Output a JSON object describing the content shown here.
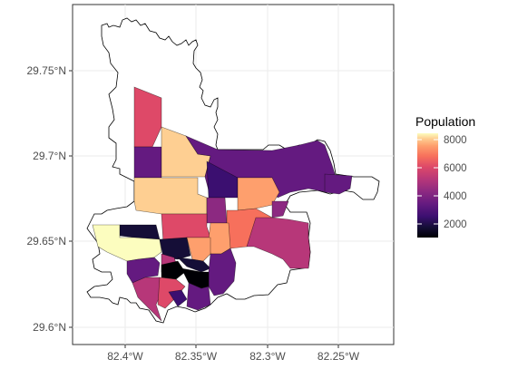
{
  "chart_data": {
    "type": "choropleth",
    "title": "",
    "xlabel": "",
    "ylabel": "",
    "x_ticks": [
      "82.4°W",
      "82.35°W",
      "82.3°W",
      "82.25°W"
    ],
    "y_ticks": [
      "29.75°N",
      "29.7°N",
      "29.65°N",
      "29.6°N"
    ],
    "xlim": [
      -82.435,
      -82.215
    ],
    "ylim": [
      29.59,
      29.78
    ],
    "grid": true,
    "legend": {
      "title": "Population",
      "placement": "right",
      "labels": [
        "8000",
        "6000",
        "4000",
        "2000"
      ],
      "range": [
        1000,
        8500
      ],
      "colormap": "magma"
    },
    "outline_color": "#000000",
    "no_data_fill": "#ffffff",
    "colors": {
      "c1000": "#000004",
      "c1500": "#150e37",
      "c2000": "#3b0f70",
      "c3000": "#641a80",
      "c3500": "#8c2981",
      "c4000": "#b73779",
      "c5000": "#de4968",
      "c6000": "#f7705c",
      "c7000": "#fe9f6d",
      "c8000": "#fecf92",
      "c8500": "#fcfdbf"
    }
  }
}
